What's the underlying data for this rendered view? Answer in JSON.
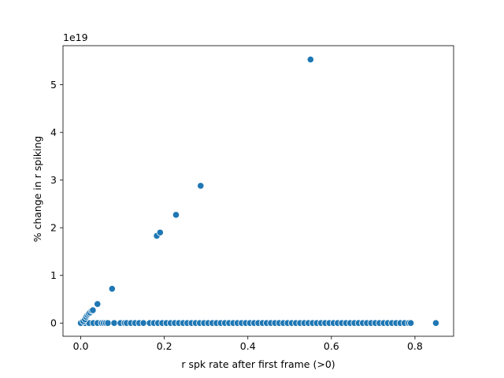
{
  "chart_data": {
    "type": "scatter",
    "title": "",
    "xlabel": "r spk rate after first frame (>0)",
    "ylabel": "% change in r spiking",
    "y_offset_text": "1e19",
    "xlim": [
      -0.0425,
      0.8925
    ],
    "ylim": [
      -0.277,
      5.82
    ],
    "x_ticks": [
      0.0,
      0.2,
      0.4,
      0.6,
      0.8
    ],
    "x_tick_labels": [
      "0.0",
      "0.2",
      "0.4",
      "0.6",
      "0.8"
    ],
    "y_ticks": [
      0,
      1,
      2,
      3,
      4,
      5
    ],
    "y_tick_labels": [
      "0",
      "1",
      "2",
      "3",
      "4",
      "5"
    ],
    "y_unit_multiplier": "1e19",
    "grid": false,
    "legend": "none",
    "marker_color": "#1f77b4",
    "marker_edge": "#ffffff",
    "points": [
      {
        "x": 0.0,
        "y": 0.0
      },
      {
        "x": 0.006,
        "y": 0.04
      },
      {
        "x": 0.01,
        "y": 0.08
      },
      {
        "x": 0.013,
        "y": 0.13
      },
      {
        "x": 0.016,
        "y": 0.17
      },
      {
        "x": 0.019,
        "y": 0.2
      },
      {
        "x": 0.022,
        "y": 0.22
      },
      {
        "x": 0.026,
        "y": 0.26
      },
      {
        "x": 0.029,
        "y": 0.27
      },
      {
        "x": 0.04,
        "y": 0.4
      },
      {
        "x": 0.075,
        "y": 0.72
      },
      {
        "x": 0.182,
        "y": 1.83
      },
      {
        "x": 0.19,
        "y": 1.9
      },
      {
        "x": 0.228,
        "y": 2.27
      },
      {
        "x": 0.287,
        "y": 2.88
      },
      {
        "x": 0.55,
        "y": 5.53
      },
      {
        "x": 0.85,
        "y": 0.0
      }
    ],
    "baseline_x": [
      0.01,
      0.02,
      0.03,
      0.04,
      0.05,
      0.055,
      0.06,
      0.065,
      0.08,
      0.095,
      0.105,
      0.11,
      0.12,
      0.13,
      0.14,
      0.15,
      0.165,
      0.175,
      0.185,
      0.195,
      0.205,
      0.215,
      0.225,
      0.235,
      0.245,
      0.255,
      0.265,
      0.275,
      0.285,
      0.295,
      0.305,
      0.315,
      0.325,
      0.335,
      0.345,
      0.355,
      0.365,
      0.375,
      0.385,
      0.395,
      0.405,
      0.415,
      0.425,
      0.435,
      0.445,
      0.455,
      0.465,
      0.475,
      0.485,
      0.495,
      0.505,
      0.515,
      0.525,
      0.535,
      0.545,
      0.555,
      0.565,
      0.575,
      0.585,
      0.595,
      0.605,
      0.615,
      0.625,
      0.635,
      0.645,
      0.655,
      0.665,
      0.675,
      0.685,
      0.695,
      0.705,
      0.715,
      0.725,
      0.735,
      0.745,
      0.755,
      0.765,
      0.775,
      0.785,
      0.79
    ],
    "baseline_y": 0.0
  }
}
